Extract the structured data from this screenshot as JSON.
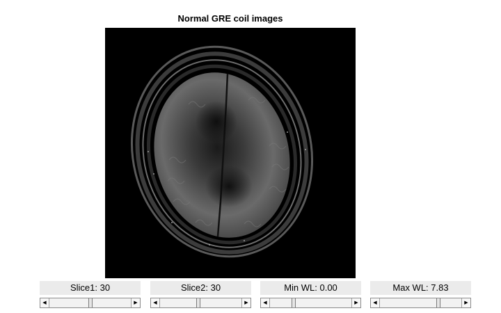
{
  "figure": {
    "title": "Normal GRE coil images"
  },
  "controls": [
    {
      "label": "Slice1: 30",
      "level": 0.5,
      "left_arrow_icon": "arrow-left-icon",
      "right_arrow_icon": "arrow-right-icon"
    },
    {
      "label": "Slice2: 30",
      "level": 0.47,
      "left_arrow_icon": "arrow-left-icon",
      "right_arrow_icon": "arrow-right-icon"
    },
    {
      "label": "Min WL: 0.00",
      "level": 0.28,
      "left_arrow_icon": "arrow-left-icon",
      "right_arrow_icon": "arrow-right-icon"
    },
    {
      "label": "Max WL: 7.83",
      "level": 0.73,
      "left_arrow_icon": "arrow-left-icon",
      "right_arrow_icon": "arrow-right-icon"
    }
  ],
  "colors": {
    "image_background": "#000000",
    "label_background": "#ebebeb"
  }
}
